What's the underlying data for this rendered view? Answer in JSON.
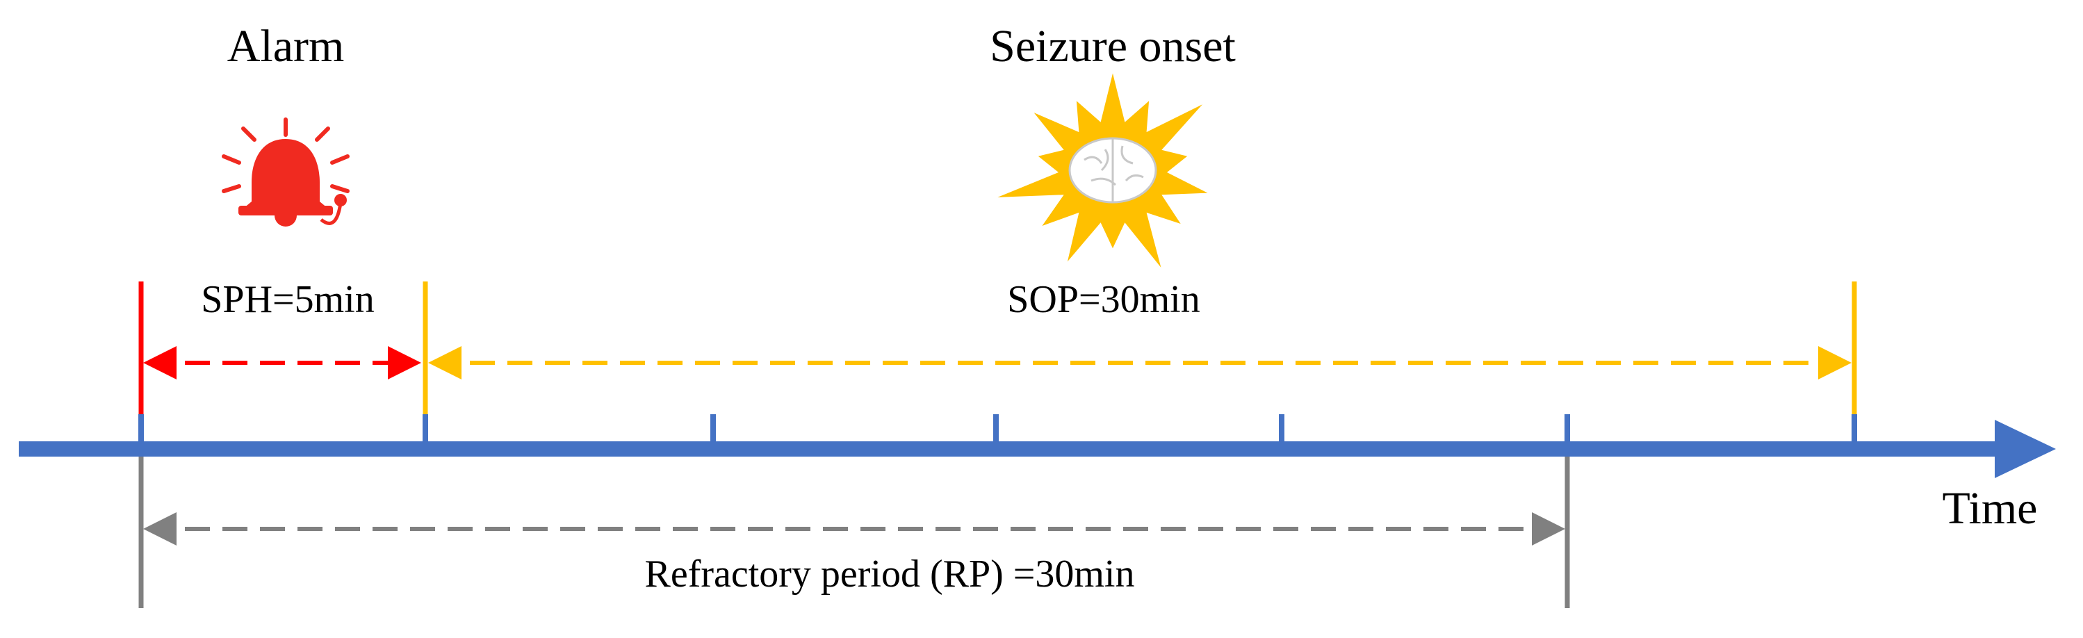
{
  "labels": {
    "alarm": "Alarm",
    "seizure_onset": "Seizure onset",
    "sph": "SPH=5min",
    "sop": "SOP=30min",
    "time": "Time",
    "rp": "Refractory period (RP) =30min"
  }
}
